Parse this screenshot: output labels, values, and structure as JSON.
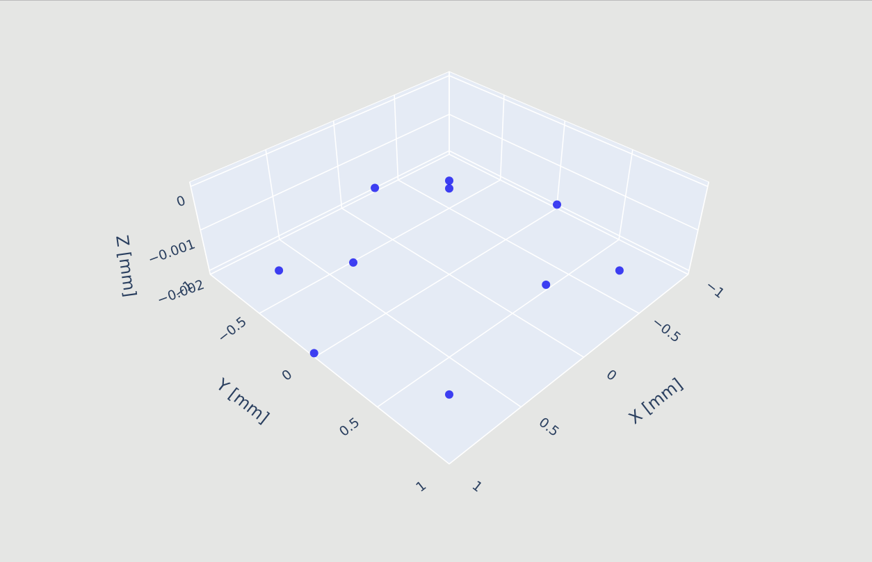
{
  "chart_data": {
    "type": "scatter3d",
    "x_title": "X [mm]",
    "y_title": "Y [mm]",
    "z_title": "Z [mm]",
    "xlim": [
      -1,
      1
    ],
    "ylim": [
      -1,
      1
    ],
    "zlim": [
      -0.0021,
      0.0001
    ],
    "xticks": [
      {
        "value": -1,
        "label": "−1"
      },
      {
        "value": -0.5,
        "label": "−0.5"
      },
      0,
      0.5,
      1
    ],
    "yticks": [
      {
        "value": -1,
        "label": "−1"
      },
      {
        "value": -0.5,
        "label": "−0.5"
      },
      0,
      0.5,
      1
    ],
    "zticks": [
      {
        "value": -0.002,
        "label": "−0.002"
      },
      {
        "value": -0.001,
        "label": "−0.001"
      },
      0
    ],
    "grid": true,
    "series": [
      {
        "color": "#1212f0",
        "x": [
          0.71,
          -0.71,
          -0.64,
          -1,
          -0.71,
          -0.3,
          0.35,
          1,
          0.71,
          -0.29
        ],
        "y": [
          -0.71,
          -0.71,
          -0.64,
          0,
          0.71,
          0.49,
          -0.46,
          0,
          0.71,
          -1
        ],
        "z": [
          -0.002,
          -0.002,
          -0.002,
          -0.002,
          -0.002,
          -0.002,
          -0.002,
          -0.002,
          -0.002,
          -0.002
        ]
      }
    ]
  }
}
